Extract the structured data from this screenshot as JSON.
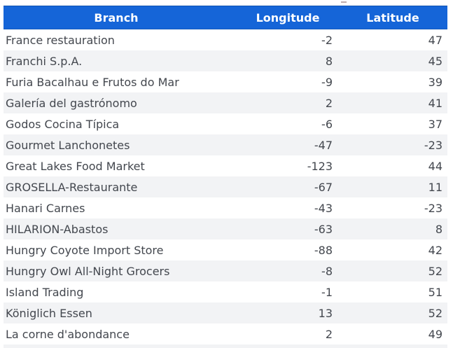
{
  "table": {
    "columns": [
      {
        "id": "branch",
        "label": "Branch"
      },
      {
        "id": "longitude",
        "label": "Longitude"
      },
      {
        "id": "latitude",
        "label": "Latitude"
      }
    ],
    "rows": [
      {
        "branch": "France restauration",
        "longitude": "-2",
        "latitude": "47"
      },
      {
        "branch": "Franchi S.p.A.",
        "longitude": "8",
        "latitude": "45"
      },
      {
        "branch": "Furia Bacalhau e Frutos do Mar",
        "longitude": "-9",
        "latitude": "39"
      },
      {
        "branch": "Galería del gastrónomo",
        "longitude": "2",
        "latitude": "41"
      },
      {
        "branch": "Godos Cocina Típica",
        "longitude": "-6",
        "latitude": "37"
      },
      {
        "branch": "Gourmet Lanchonetes",
        "longitude": "-47",
        "latitude": "-23"
      },
      {
        "branch": "Great Lakes Food Market",
        "longitude": "-123",
        "latitude": "44"
      },
      {
        "branch": "GROSELLA-Restaurante",
        "longitude": "-67",
        "latitude": "11"
      },
      {
        "branch": "Hanari Carnes",
        "longitude": "-43",
        "latitude": "-23"
      },
      {
        "branch": "HILARION-Abastos",
        "longitude": "-63",
        "latitude": "8"
      },
      {
        "branch": "Hungry Coyote Import Store",
        "longitude": "-88",
        "latitude": "42"
      },
      {
        "branch": "Hungry Owl All-Night Grocers",
        "longitude": "-8",
        "latitude": "52"
      },
      {
        "branch": "Island Trading",
        "longitude": "-1",
        "latitude": "51"
      },
      {
        "branch": "Königlich Essen",
        "longitude": "13",
        "latitude": "52"
      },
      {
        "branch": "La corne d'abondance",
        "longitude": "2",
        "latitude": "49"
      }
    ],
    "colors": {
      "header_bg": "#1565d8",
      "header_text": "#ffffff",
      "row_bg": "#ffffff",
      "row_alt_bg": "#f2f3f5",
      "row_text": "#43474e"
    }
  }
}
